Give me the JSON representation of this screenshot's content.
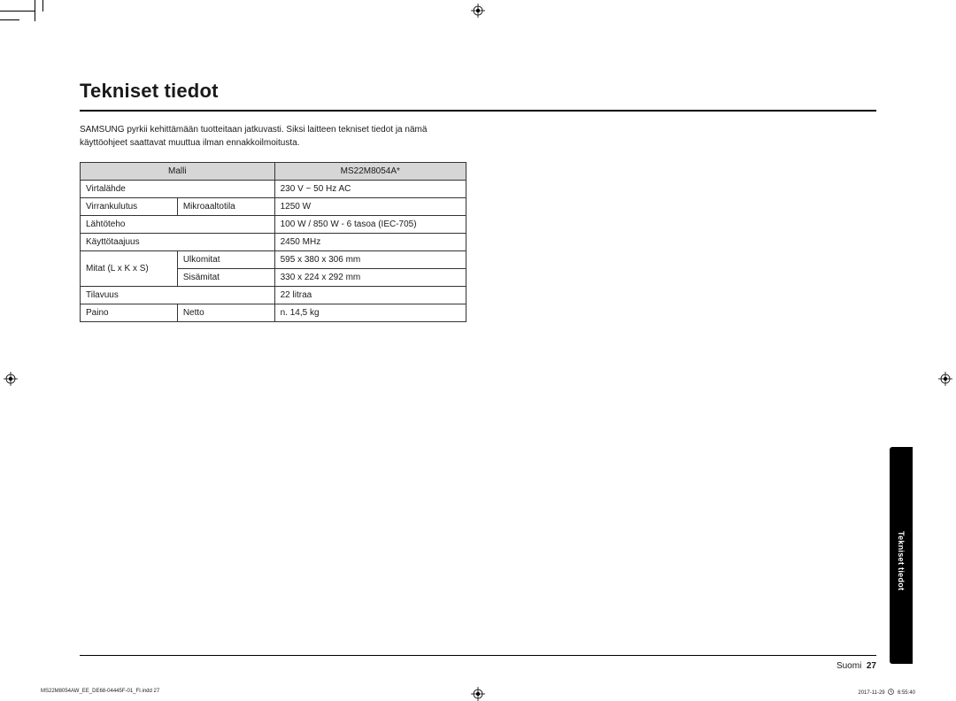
{
  "heading": "Tekniset tiedot",
  "intro": "SAMSUNG pyrkii kehittämään tuotteitaan jatkuvasti. Siksi laitteen tekniset tiedot ja nämä käyttöohjeet saattavat muuttua ilman ennakkoilmoitusta.",
  "table": {
    "header": {
      "c1": "Malli",
      "c2": "MS22M8054A*"
    },
    "rows": [
      {
        "a": "Virtalähde",
        "b": "",
        "c": "230 V ~ 50 Hz AC",
        "span_ab": true
      },
      {
        "a": "Virrankulutus",
        "b": "Mikroaaltotila",
        "c": "1250 W",
        "span_ab": false
      },
      {
        "a": "Lähtöteho",
        "b": "",
        "c": "100 W / 850 W - 6 tasoa (IEC-705)",
        "span_ab": true
      },
      {
        "a": "Käyttötaajuus",
        "b": "",
        "c": "2450 MHz",
        "span_ab": true
      },
      {
        "a": "Mitat (L x K x S)",
        "b": "Ulkomitat",
        "c": "595 x 380 x 306 mm",
        "span_ab": false,
        "rowspan_a": 2
      },
      {
        "a": "",
        "b": "Sisämitat",
        "c": "330 x 224 x 292 mm",
        "skip_a": true
      },
      {
        "a": "Tilavuus",
        "b": "",
        "c": "22 litraa",
        "span_ab": true
      },
      {
        "a": "Paino",
        "b": "Netto",
        "c": "n. 14,5 kg",
        "span_ab": false
      }
    ]
  },
  "side_tab": "Tekniset tiedot",
  "page_lang": "Suomi",
  "page_number": "27",
  "footer_left": "MS22M8054AW_EE_DE68-04445F-01_FI.indd   27",
  "footer_date": "2017-11-29",
  "footer_time": "6:55:40",
  "colors": {
    "table_header_bg": "#d6d6d6",
    "border": "#333333",
    "side_tab_bg": "#000000",
    "side_tab_fg": "#ffffff"
  }
}
